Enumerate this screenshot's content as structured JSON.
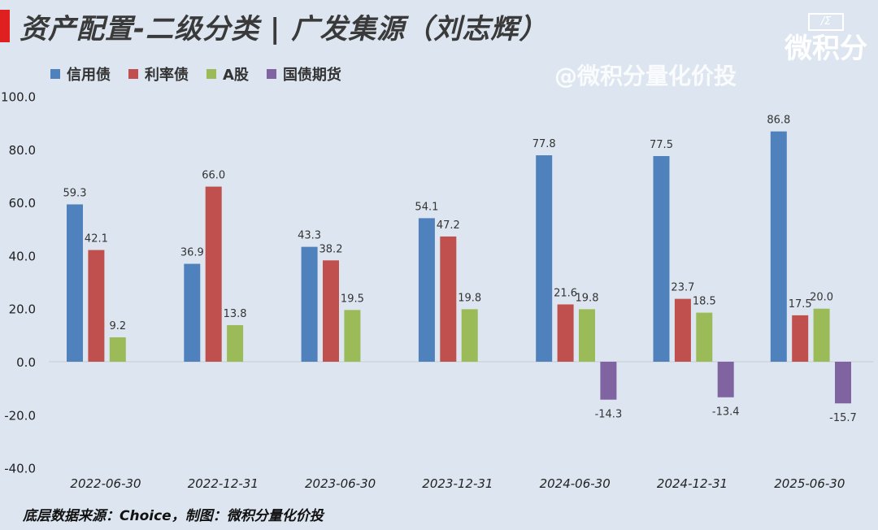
{
  "title": "资产配置-二级分类 | 广发集源（刘志辉）",
  "watermark": "@微积分量化价投",
  "logo": {
    "mark": "/Σ",
    "name": "微积分"
  },
  "footer": "底层数据来源：Choice，制图：微积分量化价投",
  "chart_data": {
    "type": "bar",
    "categories": [
      "2022-06-30",
      "2022-12-31",
      "2023-06-30",
      "2023-12-31",
      "2024-06-30",
      "2024-12-31",
      "2025-06-30"
    ],
    "series": [
      {
        "name": "信用债",
        "color": "#4f81bd",
        "values": [
          59.3,
          36.9,
          43.3,
          54.1,
          77.8,
          77.5,
          86.8
        ]
      },
      {
        "name": "利率债",
        "color": "#c0504d",
        "values": [
          42.1,
          66.0,
          38.2,
          47.2,
          21.6,
          23.7,
          17.5
        ]
      },
      {
        "name": "A股",
        "color": "#9bbb59",
        "values": [
          9.2,
          13.8,
          19.5,
          19.8,
          19.8,
          18.5,
          20.0
        ]
      },
      {
        "name": "国债期货",
        "color": "#8064a2",
        "values": [
          null,
          null,
          null,
          null,
          -14.3,
          -13.4,
          -15.7
        ]
      }
    ],
    "ylim": [
      -40,
      100
    ],
    "yticks": [
      "-40.0",
      "-20.0",
      "0.0",
      "20.0",
      "40.0",
      "60.0",
      "80.0",
      "100.0"
    ],
    "legend": "top-left",
    "grid": false
  }
}
